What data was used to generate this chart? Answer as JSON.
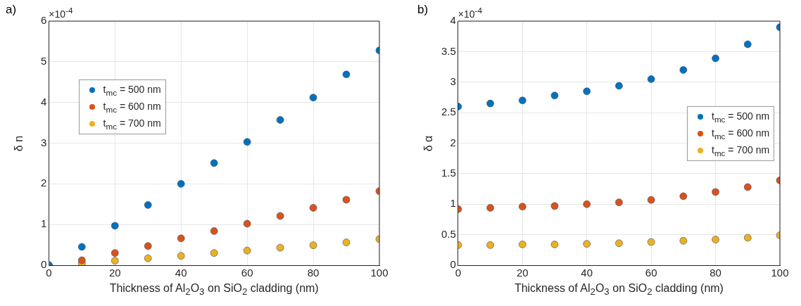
{
  "chart_data": [
    {
      "type": "scatter",
      "title": "a)",
      "xlabel": "Thickness of Al$_{2}$O$_{3}$ on SiO$_{2}$ cladding (nm)",
      "ylabel": "δ n",
      "annotations": [
        "×10$^{-4}$"
      ],
      "x": [
        0,
        10,
        20,
        30,
        40,
        50,
        60,
        70,
        80,
        90,
        100
      ],
      "xlim": [
        0,
        100
      ],
      "xticks": [
        0,
        20,
        40,
        60,
        80,
        100
      ],
      "ylim": [
        0,
        6
      ],
      "yticks": [
        0,
        1,
        2,
        3,
        4,
        5,
        6
      ],
      "grid": true,
      "legend": "top left",
      "marker": "circle",
      "series": [
        {
          "name": "t$_{mc}$ = 500 nm",
          "color": "#0072bd",
          "values": [
            0,
            0.45,
            0.97,
            1.48,
            2.0,
            2.51,
            3.03,
            3.57,
            4.12,
            4.69,
            5.28
          ]
        },
        {
          "name": "t$_{mc}$ = 600 nm",
          "color": "#d95319",
          "values": [
            0,
            0.12,
            0.3,
            0.47,
            0.66,
            0.84,
            1.02,
            1.21,
            1.41,
            1.61,
            1.82
          ]
        },
        {
          "name": "t$_{mc}$ = 700 nm",
          "color": "#edb120",
          "values": [
            0,
            0.04,
            0.11,
            0.17,
            0.23,
            0.3,
            0.36,
            0.43,
            0.49,
            0.56,
            0.64
          ]
        }
      ]
    },
    {
      "type": "scatter",
      "title": "b)",
      "xlabel": "Thickness of Al$_{2}$O$_{3}$ on SiO$_{2}$ cladding (nm)",
      "ylabel": "δ α",
      "annotations": [
        "×10$^{-4}$"
      ],
      "x": [
        0,
        10,
        20,
        30,
        40,
        50,
        60,
        70,
        80,
        90,
        100
      ],
      "xlim": [
        0,
        100
      ],
      "xticks": [
        0,
        20,
        40,
        60,
        80,
        100
      ],
      "ylim": [
        0,
        4
      ],
      "yticks": [
        0,
        0.5,
        1,
        1.5,
        2,
        2.5,
        3,
        3.5,
        4
      ],
      "grid": true,
      "legend": "right",
      "marker": "circle",
      "series": [
        {
          "name": "t$_{mc}$ = 500 nm",
          "color": "#0072bd",
          "values": [
            2.6,
            2.65,
            2.7,
            2.78,
            2.85,
            2.94,
            3.05,
            3.2,
            3.39,
            3.62,
            3.9
          ]
        },
        {
          "name": "t$_{mc}$ = 600 nm",
          "color": "#d95319",
          "values": [
            0.92,
            0.94,
            0.96,
            0.97,
            1.0,
            1.03,
            1.07,
            1.13,
            1.2,
            1.28,
            1.39
          ]
        },
        {
          "name": "t$_{mc}$ = 700 nm",
          "color": "#edb120",
          "values": [
            0.33,
            0.33,
            0.34,
            0.34,
            0.35,
            0.36,
            0.38,
            0.4,
            0.42,
            0.45,
            0.49
          ]
        }
      ]
    }
  ]
}
